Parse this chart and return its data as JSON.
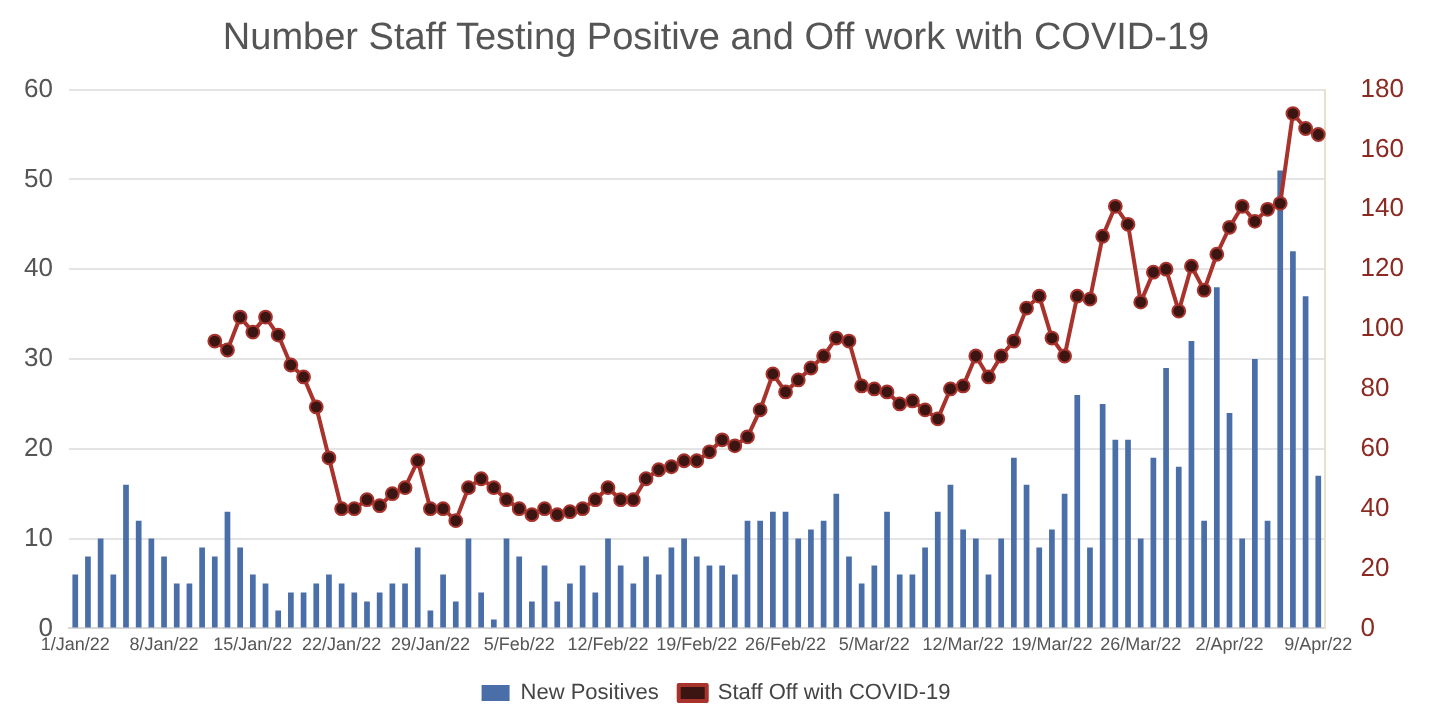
{
  "chart_data": {
    "type": "bar",
    "title": "Number Staff Testing Positive and Off work with COVID-19",
    "categories": [
      "1/Jan/22",
      null,
      null,
      null,
      null,
      null,
      null,
      "8/Jan/22",
      null,
      null,
      null,
      null,
      null,
      null,
      "15/Jan/22",
      null,
      null,
      null,
      null,
      null,
      null,
      "22/Jan/22",
      null,
      null,
      null,
      null,
      null,
      null,
      "29/Jan/22",
      null,
      null,
      null,
      null,
      null,
      null,
      "5/Feb/22",
      null,
      null,
      null,
      null,
      null,
      null,
      "12/Feb/22",
      null,
      null,
      null,
      null,
      null,
      null,
      "19/Feb/22",
      null,
      null,
      null,
      null,
      null,
      null,
      "26/Feb/22",
      null,
      null,
      null,
      null,
      null,
      null,
      "5/Mar/22",
      null,
      null,
      null,
      null,
      null,
      null,
      "12/Mar/22",
      null,
      null,
      null,
      null,
      null,
      null,
      "19/Mar/22",
      null,
      null,
      null,
      null,
      null,
      null,
      "26/Mar/22",
      null,
      null,
      null,
      null,
      null,
      null,
      "2/Apr/22",
      null,
      null,
      null,
      null,
      null,
      null,
      "9/Apr/22"
    ],
    "series": [
      {
        "name": "New Positives",
        "axis": "y",
        "color": "#4a6ea8",
        "values": [
          6,
          8,
          10,
          6,
          16,
          12,
          10,
          8,
          5,
          5,
          9,
          8,
          13,
          9,
          6,
          5,
          2,
          4,
          4,
          5,
          6,
          5,
          4,
          3,
          4,
          5,
          5,
          9,
          2,
          6,
          3,
          10,
          4,
          1,
          10,
          8,
          3,
          7,
          3,
          5,
          7,
          4,
          10,
          7,
          5,
          8,
          6,
          9,
          10,
          8,
          7,
          7,
          6,
          12,
          12,
          13,
          13,
          10,
          11,
          12,
          15,
          8,
          5,
          7,
          13,
          6,
          6,
          9,
          13,
          16,
          11,
          10,
          6,
          10,
          19,
          16,
          9,
          11,
          15,
          26,
          9,
          25,
          21,
          21,
          10,
          19,
          29,
          18,
          32,
          12,
          38,
          24,
          10,
          30,
          12,
          51,
          42,
          37,
          17
        ]
      },
      {
        "name": "Staff Off with COVID-19",
        "type": "line",
        "axis": "y2",
        "color": "#a8322c",
        "marker": "circle",
        "values": [
          null,
          null,
          null,
          null,
          null,
          null,
          null,
          null,
          null,
          null,
          null,
          96,
          93,
          104,
          99,
          104,
          98,
          88,
          84,
          74,
          57,
          40,
          40,
          43,
          41,
          45,
          47,
          56,
          40,
          40,
          36,
          47,
          50,
          47,
          43,
          40,
          38,
          40,
          38,
          39,
          40,
          43,
          47,
          43,
          43,
          50,
          53,
          54,
          56,
          56,
          59,
          63,
          61,
          64,
          73,
          85,
          79,
          83,
          87,
          91,
          97,
          96,
          81,
          80,
          79,
          75,
          76,
          73,
          70,
          80,
          81,
          91,
          84,
          91,
          96,
          107,
          111,
          97,
          91,
          111,
          110,
          131,
          141,
          135,
          109,
          119,
          120,
          106,
          121,
          113,
          125,
          134,
          141,
          136,
          140,
          142,
          172,
          167,
          165
        ]
      }
    ],
    "ylim": [
      0,
      60
    ],
    "yticks": [
      0,
      10,
      20,
      30,
      40,
      50,
      60
    ],
    "y2lim": [
      0,
      180
    ],
    "y2ticks": [
      0,
      20,
      40,
      60,
      80,
      100,
      120,
      140,
      160,
      180
    ],
    "grid": "y",
    "legend": "bottom"
  }
}
